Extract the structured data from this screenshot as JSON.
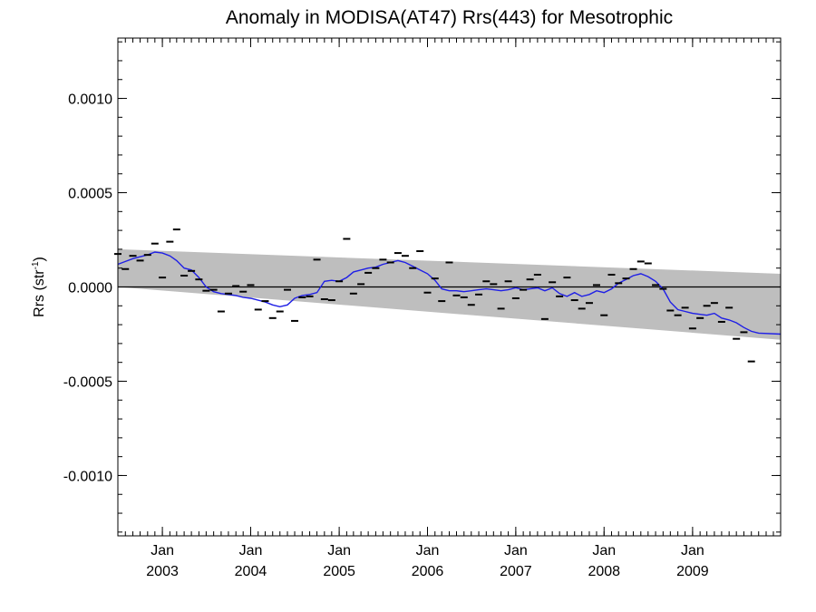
{
  "chart_data": {
    "type": "scatter",
    "title": "Anomaly in MODISA(AT47) Rrs(443) for Mesotrophic",
    "ylabel_main": "Rrs (str",
    "ylabel_sup": "-1",
    "ylabel_end": ")",
    "xlabel": "",
    "xlim": [
      "2002-07-01",
      "2009-12-31"
    ],
    "ylim": [
      -0.00132,
      0.00132
    ],
    "y_ticks": [
      {
        "value": 0.001,
        "label": "0.0010"
      },
      {
        "value": 0.0005,
        "label": "0.0005"
      },
      {
        "value": 0.0,
        "label": "0.0000"
      },
      {
        "value": -0.0005,
        "label": "-0.0005"
      },
      {
        "value": -0.001,
        "label": "-0.0010"
      }
    ],
    "x_ticks": [
      {
        "date": "2003-01-01",
        "month": "Jan",
        "year": "2003"
      },
      {
        "date": "2004-01-01",
        "month": "Jan",
        "year": "2004"
      },
      {
        "date": "2005-01-01",
        "month": "Jan",
        "year": "2005"
      },
      {
        "date": "2006-01-01",
        "month": "Jan",
        "year": "2006"
      },
      {
        "date": "2007-01-01",
        "month": "Jan",
        "year": "2007"
      },
      {
        "date": "2008-01-01",
        "month": "Jan",
        "year": "2008"
      },
      {
        "date": "2009-01-01",
        "month": "Jan",
        "year": "2009"
      }
    ],
    "zero_line": 0.0,
    "confidence_band": {
      "start": {
        "date": "2002-07-01",
        "upper": 0.0002,
        "lower": 0.0
      },
      "end": {
        "date": "2009-12-31",
        "upper": 7e-05,
        "lower": -0.00028
      }
    },
    "monthly_points": [
      {
        "date": "2002-07-01",
        "y": 0.000175
      },
      {
        "date": "2002-08-01",
        "y": 9.5e-05
      },
      {
        "date": "2002-09-01",
        "y": 0.000165
      },
      {
        "date": "2002-10-01",
        "y": 0.00014
      },
      {
        "date": "2002-11-01",
        "y": 0.00017
      },
      {
        "date": "2002-12-01",
        "y": 0.00023
      },
      {
        "date": "2003-01-01",
        "y": 5e-05
      },
      {
        "date": "2003-02-01",
        "y": 0.00024
      },
      {
        "date": "2003-03-01",
        "y": 0.000305
      },
      {
        "date": "2003-04-01",
        "y": 6e-05
      },
      {
        "date": "2003-05-01",
        "y": 8.5e-05
      },
      {
        "date": "2003-06-01",
        "y": 4e-05
      },
      {
        "date": "2003-07-01",
        "y": -2e-05
      },
      {
        "date": "2003-08-01",
        "y": -1.5e-05
      },
      {
        "date": "2003-09-01",
        "y": -0.00013
      },
      {
        "date": "2003-10-01",
        "y": -3.5e-05
      },
      {
        "date": "2003-11-01",
        "y": 5e-06
      },
      {
        "date": "2003-12-01",
        "y": -2.5e-05
      },
      {
        "date": "2004-01-01",
        "y": 1e-05
      },
      {
        "date": "2004-02-01",
        "y": -0.00012
      },
      {
        "date": "2004-03-01",
        "y": -7.5e-05
      },
      {
        "date": "2004-04-01",
        "y": -0.000165
      },
      {
        "date": "2004-05-01",
        "y": -0.00013
      },
      {
        "date": "2004-06-01",
        "y": -1.5e-05
      },
      {
        "date": "2004-07-01",
        "y": -0.00018
      },
      {
        "date": "2004-08-01",
        "y": -5.5e-05
      },
      {
        "date": "2004-09-01",
        "y": -5e-05
      },
      {
        "date": "2004-10-01",
        "y": 0.000145
      },
      {
        "date": "2004-11-01",
        "y": -6.5e-05
      },
      {
        "date": "2004-12-01",
        "y": -7e-05
      },
      {
        "date": "2005-01-01",
        "y": 3e-05
      },
      {
        "date": "2005-02-01",
        "y": 0.000255
      },
      {
        "date": "2005-03-01",
        "y": -3.5e-05
      },
      {
        "date": "2005-04-01",
        "y": 1.5e-05
      },
      {
        "date": "2005-05-01",
        "y": 7.5e-05
      },
      {
        "date": "2005-06-01",
        "y": 0.0001
      },
      {
        "date": "2005-07-01",
        "y": 0.000145
      },
      {
        "date": "2005-08-01",
        "y": 0.00013
      },
      {
        "date": "2005-09-01",
        "y": 0.00018
      },
      {
        "date": "2005-10-01",
        "y": 0.000165
      },
      {
        "date": "2005-11-01",
        "y": 0.0001
      },
      {
        "date": "2005-12-01",
        "y": 0.00019
      },
      {
        "date": "2006-01-01",
        "y": -3e-05
      },
      {
        "date": "2006-02-01",
        "y": 4.5e-05
      },
      {
        "date": "2006-03-01",
        "y": -7.5e-05
      },
      {
        "date": "2006-04-01",
        "y": 0.00013
      },
      {
        "date": "2006-05-01",
        "y": -4.5e-05
      },
      {
        "date": "2006-06-01",
        "y": -5.5e-05
      },
      {
        "date": "2006-07-01",
        "y": -9.5e-05
      },
      {
        "date": "2006-08-01",
        "y": -4e-05
      },
      {
        "date": "2006-09-01",
        "y": 3e-05
      },
      {
        "date": "2006-10-01",
        "y": 1.5e-05
      },
      {
        "date": "2006-11-01",
        "y": -0.000115
      },
      {
        "date": "2006-12-01",
        "y": 3e-05
      },
      {
        "date": "2007-01-01",
        "y": -6e-05
      },
      {
        "date": "2007-02-01",
        "y": -1.5e-05
      },
      {
        "date": "2007-03-01",
        "y": 4e-05
      },
      {
        "date": "2007-04-01",
        "y": 6.5e-05
      },
      {
        "date": "2007-05-01",
        "y": -0.00017
      },
      {
        "date": "2007-06-01",
        "y": 2.5e-05
      },
      {
        "date": "2007-07-01",
        "y": -5e-05
      },
      {
        "date": "2007-08-01",
        "y": 5e-05
      },
      {
        "date": "2007-09-01",
        "y": -7e-05
      },
      {
        "date": "2007-10-01",
        "y": -0.000115
      },
      {
        "date": "2007-11-01",
        "y": -8.5e-05
      },
      {
        "date": "2007-12-01",
        "y": 1e-05
      },
      {
        "date": "2008-01-01",
        "y": -0.00015
      },
      {
        "date": "2008-02-01",
        "y": 6.5e-05
      },
      {
        "date": "2008-03-01",
        "y": 2e-05
      },
      {
        "date": "2008-04-01",
        "y": 4.5e-05
      },
      {
        "date": "2008-05-01",
        "y": 9.5e-05
      },
      {
        "date": "2008-06-01",
        "y": 0.000135
      },
      {
        "date": "2008-07-01",
        "y": 0.000125
      },
      {
        "date": "2008-08-01",
        "y": 1e-05
      },
      {
        "date": "2008-09-01",
        "y": -1e-05
      },
      {
        "date": "2008-10-01",
        "y": -0.000125
      },
      {
        "date": "2008-11-01",
        "y": -0.00015
      },
      {
        "date": "2008-12-01",
        "y": -0.00011
      },
      {
        "date": "2009-01-01",
        "y": -0.00022
      },
      {
        "date": "2009-02-01",
        "y": -0.000165
      },
      {
        "date": "2009-03-01",
        "y": -0.0001
      },
      {
        "date": "2009-04-01",
        "y": -8.5e-05
      },
      {
        "date": "2009-05-01",
        "y": -0.000185
      },
      {
        "date": "2009-06-01",
        "y": -0.00011
      },
      {
        "date": "2009-07-01",
        "y": -0.000275
      },
      {
        "date": "2009-08-01",
        "y": -0.00024
      },
      {
        "date": "2009-09-01",
        "y": -0.000395
      }
    ],
    "smoothed_series": {
      "name": "",
      "color": "#1f1fe6",
      "points": [
        {
          "date": "2002-07-01",
          "y": 0.00012
        },
        {
          "date": "2002-08-01",
          "y": 0.000135
        },
        {
          "date": "2002-09-01",
          "y": 0.00015
        },
        {
          "date": "2002-10-01",
          "y": 0.00016
        },
        {
          "date": "2002-11-01",
          "y": 0.00017
        },
        {
          "date": "2002-12-01",
          "y": 0.000185
        },
        {
          "date": "2003-01-01",
          "y": 0.00018
        },
        {
          "date": "2003-02-01",
          "y": 0.000165
        },
        {
          "date": "2003-03-01",
          "y": 0.00014
        },
        {
          "date": "2003-04-01",
          "y": 0.0001
        },
        {
          "date": "2003-05-01",
          "y": 9e-05
        },
        {
          "date": "2003-06-01",
          "y": 5e-05
        },
        {
          "date": "2003-07-01",
          "y": 0.0
        },
        {
          "date": "2003-08-01",
          "y": -2.5e-05
        },
        {
          "date": "2003-09-01",
          "y": -3.5e-05
        },
        {
          "date": "2003-10-01",
          "y": -4e-05
        },
        {
          "date": "2003-11-01",
          "y": -4.5e-05
        },
        {
          "date": "2003-12-01",
          "y": -5.5e-05
        },
        {
          "date": "2004-01-01",
          "y": -6e-05
        },
        {
          "date": "2004-02-01",
          "y": -7e-05
        },
        {
          "date": "2004-03-01",
          "y": -8e-05
        },
        {
          "date": "2004-04-01",
          "y": -9.5e-05
        },
        {
          "date": "2004-05-01",
          "y": -0.000105
        },
        {
          "date": "2004-06-01",
          "y": -9.5e-05
        },
        {
          "date": "2004-07-01",
          "y": -6e-05
        },
        {
          "date": "2004-08-01",
          "y": -4.5e-05
        },
        {
          "date": "2004-09-01",
          "y": -4e-05
        },
        {
          "date": "2004-10-01",
          "y": -3e-05
        },
        {
          "date": "2004-11-01",
          "y": 3e-05
        },
        {
          "date": "2004-12-01",
          "y": 3.5e-05
        },
        {
          "date": "2005-01-01",
          "y": 3e-05
        },
        {
          "date": "2005-02-01",
          "y": 5e-05
        },
        {
          "date": "2005-03-01",
          "y": 8e-05
        },
        {
          "date": "2005-04-01",
          "y": 9e-05
        },
        {
          "date": "2005-05-01",
          "y": 0.0001
        },
        {
          "date": "2005-06-01",
          "y": 0.000105
        },
        {
          "date": "2005-07-01",
          "y": 0.00012
        },
        {
          "date": "2005-08-01",
          "y": 0.00013
        },
        {
          "date": "2005-09-01",
          "y": 0.00014
        },
        {
          "date": "2005-10-01",
          "y": 0.00013
        },
        {
          "date": "2005-11-01",
          "y": 0.00011
        },
        {
          "date": "2005-12-01",
          "y": 9e-05
        },
        {
          "date": "2006-01-01",
          "y": 7e-05
        },
        {
          "date": "2006-02-01",
          "y": 3.5e-05
        },
        {
          "date": "2006-03-01",
          "y": -1e-05
        },
        {
          "date": "2006-04-01",
          "y": -2e-05
        },
        {
          "date": "2006-05-01",
          "y": -2e-05
        },
        {
          "date": "2006-06-01",
          "y": -2.5e-05
        },
        {
          "date": "2006-07-01",
          "y": -2e-05
        },
        {
          "date": "2006-08-01",
          "y": -1.5e-05
        },
        {
          "date": "2006-09-01",
          "y": -1e-05
        },
        {
          "date": "2006-10-01",
          "y": -1.5e-05
        },
        {
          "date": "2006-11-01",
          "y": -2e-05
        },
        {
          "date": "2006-12-01",
          "y": -1.5e-05
        },
        {
          "date": "2007-01-01",
          "y": -5e-06
        },
        {
          "date": "2007-02-01",
          "y": -1.5e-05
        },
        {
          "date": "2007-03-01",
          "y": -1e-05
        },
        {
          "date": "2007-04-01",
          "y": -5e-06
        },
        {
          "date": "2007-05-01",
          "y": -2e-05
        },
        {
          "date": "2007-06-01",
          "y": -5e-06
        },
        {
          "date": "2007-07-01",
          "y": -3.5e-05
        },
        {
          "date": "2007-08-01",
          "y": -5e-05
        },
        {
          "date": "2007-09-01",
          "y": -3e-05
        },
        {
          "date": "2007-10-01",
          "y": -5e-05
        },
        {
          "date": "2007-11-01",
          "y": -4e-05
        },
        {
          "date": "2007-12-01",
          "y": -2e-05
        },
        {
          "date": "2008-01-01",
          "y": -3e-05
        },
        {
          "date": "2008-02-01",
          "y": -1e-05
        },
        {
          "date": "2008-03-01",
          "y": 2e-05
        },
        {
          "date": "2008-04-01",
          "y": 4e-05
        },
        {
          "date": "2008-05-01",
          "y": 6e-05
        },
        {
          "date": "2008-06-01",
          "y": 7e-05
        },
        {
          "date": "2008-07-01",
          "y": 5.5e-05
        },
        {
          "date": "2008-08-01",
          "y": 3e-05
        },
        {
          "date": "2008-09-01",
          "y": -1e-05
        },
        {
          "date": "2008-10-01",
          "y": -8e-05
        },
        {
          "date": "2008-11-01",
          "y": -0.00012
        },
        {
          "date": "2008-12-01",
          "y": -0.00013
        },
        {
          "date": "2009-01-01",
          "y": -0.00014
        },
        {
          "date": "2009-02-01",
          "y": -0.000145
        },
        {
          "date": "2009-03-01",
          "y": -0.00015
        },
        {
          "date": "2009-04-01",
          "y": -0.00014
        },
        {
          "date": "2009-05-01",
          "y": -0.000165
        },
        {
          "date": "2009-06-01",
          "y": -0.000175
        },
        {
          "date": "2009-07-01",
          "y": -0.00019
        },
        {
          "date": "2009-08-01",
          "y": -0.000215
        },
        {
          "date": "2009-09-01",
          "y": -0.000235
        },
        {
          "date": "2009-10-01",
          "y": -0.000245
        },
        {
          "date": "2009-12-31",
          "y": -0.00025
        }
      ]
    },
    "grid": false,
    "legend": "none",
    "colors": {
      "band": "#bebebe",
      "smooth_line": "#1f1fe6",
      "points": "#000000",
      "axes": "#000000"
    }
  }
}
